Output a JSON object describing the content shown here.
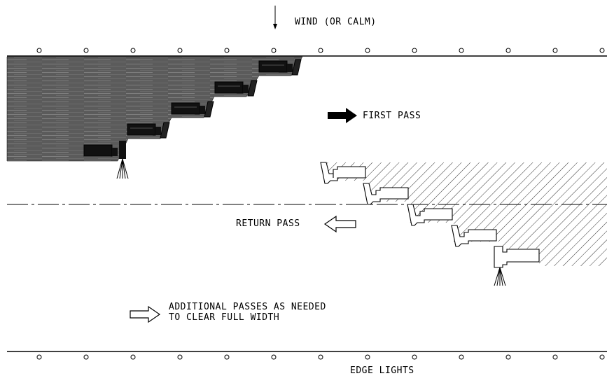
{
  "labels": {
    "wind": "WIND (OR CALM)",
    "first_pass": "FIRST PASS",
    "return_pass": "RETURN PASS",
    "additional_line1": "ADDITIONAL PASSES AS NEEDED",
    "additional_line2": "TO CLEAR FULL WIDTH",
    "edge_lights": "EDGE LIGHTS"
  },
  "colors": {
    "ink": "#000000",
    "cleared_fill": "#5a5a5a",
    "background": "#ffffff"
  },
  "icons": {
    "wind_direction": "down-arrow-icon",
    "first_pass_direction": "solid-right-arrow-icon",
    "return_pass_direction": "hollow-left-arrow-icon",
    "additional_passes": "hollow-right-arrow-icon"
  }
}
